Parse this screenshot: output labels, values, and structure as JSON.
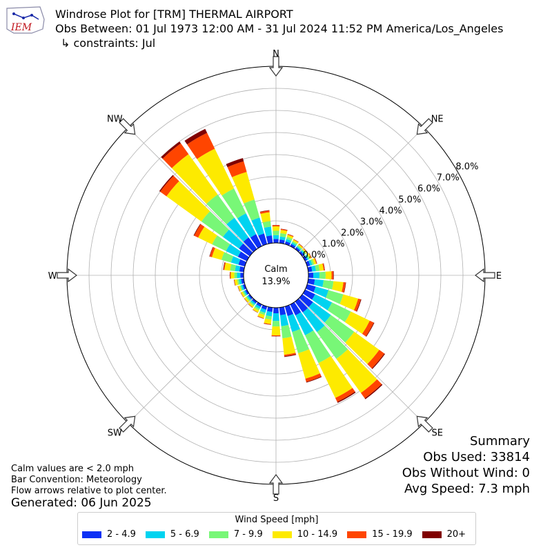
{
  "header": {
    "logo_text": "IEM",
    "title": "Windrose Plot for [TRM] THERMAL AIRPORT",
    "subtitle": "Obs Between: 01 Jul 1973 12:00 AM - 31 Jul 2024 11:52 PM America/Los_Angeles",
    "constraints": "↳ constraints: Jul"
  },
  "notes": {
    "line1": "Calm values are < 2.0 mph",
    "line2": "Bar Convention: Meteorology",
    "line3": "Flow arrows relative to plot center.",
    "generated": "Generated: 06 Jun 2025"
  },
  "summary": {
    "heading": "Summary",
    "obs_used": "Obs Used: 33814",
    "obs_without_wind": "Obs Without Wind: 0",
    "avg_speed": "Avg Speed: 7.3 mph"
  },
  "chart_data": {
    "type": "windrose",
    "calm_label": "Calm",
    "calm_value": "13.9%",
    "compass_labels": [
      "N",
      "NE",
      "E",
      "SE",
      "S",
      "SW",
      "W",
      "NW"
    ],
    "radial_ticks": [
      "0.0%",
      "1.0%",
      "2.0%",
      "3.0%",
      "4.0%",
      "5.0%",
      "6.0%",
      "7.0%",
      "8.0%"
    ],
    "radial_max": 8.0,
    "grid": true,
    "legend_title": "Wind Speed [mph]",
    "legend_position": "bottom-center",
    "bins": [
      {
        "name": "2 - 4.9",
        "color": "#0d31f5"
      },
      {
        "name": "5 - 6.9",
        "color": "#00d3f0"
      },
      {
        "name": "7 - 9.9",
        "color": "#78f777"
      },
      {
        "name": "10 - 14.9",
        "color": "#fdea00"
      },
      {
        "name": "15 - 19.9",
        "color": "#ff4500"
      },
      {
        "name": "20+",
        "color": "#800000"
      }
    ],
    "direction_degrees": [
      0,
      10,
      20,
      30,
      40,
      50,
      60,
      70,
      80,
      90,
      100,
      110,
      120,
      130,
      140,
      150,
      160,
      170,
      180,
      190,
      200,
      210,
      220,
      230,
      240,
      250,
      260,
      270,
      280,
      290,
      300,
      310,
      320,
      330,
      340,
      350
    ],
    "cumulative_percent": [
      [
        0.18,
        0.35,
        0.55,
        0.75,
        0.8,
        0.81
      ],
      [
        0.16,
        0.3,
        0.45,
        0.6,
        0.64,
        0.65
      ],
      [
        0.13,
        0.24,
        0.34,
        0.44,
        0.47,
        0.48
      ],
      [
        0.11,
        0.19,
        0.26,
        0.33,
        0.35,
        0.36
      ],
      [
        0.1,
        0.16,
        0.22,
        0.28,
        0.3,
        0.31
      ],
      [
        0.1,
        0.16,
        0.21,
        0.27,
        0.29,
        0.3
      ],
      [
        0.11,
        0.18,
        0.24,
        0.31,
        0.33,
        0.34
      ],
      [
        0.14,
        0.24,
        0.33,
        0.43,
        0.46,
        0.47
      ],
      [
        0.18,
        0.35,
        0.52,
        0.7,
        0.75,
        0.76
      ],
      [
        0.22,
        0.5,
        0.78,
        1.05,
        1.13,
        1.15
      ],
      [
        0.3,
        0.7,
        1.15,
        1.6,
        1.7,
        1.72
      ],
      [
        0.4,
        1.0,
        1.7,
        2.4,
        2.52,
        2.55
      ],
      [
        0.5,
        1.35,
        2.3,
        3.25,
        3.45,
        3.48
      ],
      [
        0.6,
        1.6,
        2.9,
        4.3,
        4.58,
        4.62
      ],
      [
        0.6,
        1.7,
        3.2,
        5.1,
        5.4,
        5.45
      ],
      [
        0.55,
        1.55,
        2.95,
        4.7,
        4.9,
        4.95
      ],
      [
        0.45,
        1.2,
        2.2,
        3.4,
        3.55,
        3.58
      ],
      [
        0.35,
        0.85,
        1.4,
        2.15,
        2.22,
        2.25
      ],
      [
        0.25,
        0.6,
        0.85,
        1.25,
        1.29,
        1.3
      ],
      [
        0.2,
        0.4,
        0.55,
        0.75,
        0.78,
        0.79
      ],
      [
        0.15,
        0.3,
        0.4,
        0.55,
        0.57,
        0.58
      ],
      [
        0.12,
        0.22,
        0.3,
        0.4,
        0.41,
        0.42
      ],
      [
        0.1,
        0.18,
        0.25,
        0.33,
        0.34,
        0.35
      ],
      [
        0.09,
        0.16,
        0.22,
        0.3,
        0.31,
        0.32
      ],
      [
        0.09,
        0.16,
        0.22,
        0.3,
        0.31,
        0.32
      ],
      [
        0.1,
        0.18,
        0.24,
        0.32,
        0.33,
        0.34
      ],
      [
        0.12,
        0.22,
        0.3,
        0.42,
        0.44,
        0.45
      ],
      [
        0.15,
        0.3,
        0.42,
        0.58,
        0.62,
        0.63
      ],
      [
        0.2,
        0.4,
        0.62,
        0.88,
        0.92,
        0.94
      ],
      [
        0.3,
        0.65,
        1.1,
        1.55,
        1.65,
        1.67
      ],
      [
        0.45,
        1.05,
        1.75,
        2.45,
        2.65,
        2.68
      ],
      [
        0.6,
        1.5,
        2.7,
        4.65,
        5.0,
        5.05
      ],
      [
        0.65,
        1.75,
        3.05,
        5.3,
        5.9,
        6.0
      ],
      [
        0.6,
        1.65,
        2.9,
        4.9,
        5.7,
        5.9
      ],
      [
        0.5,
        1.25,
        2.1,
        3.4,
        3.9,
        4.05
      ],
      [
        0.35,
        0.75,
        1.0,
        1.4,
        1.48,
        1.5
      ]
    ]
  }
}
